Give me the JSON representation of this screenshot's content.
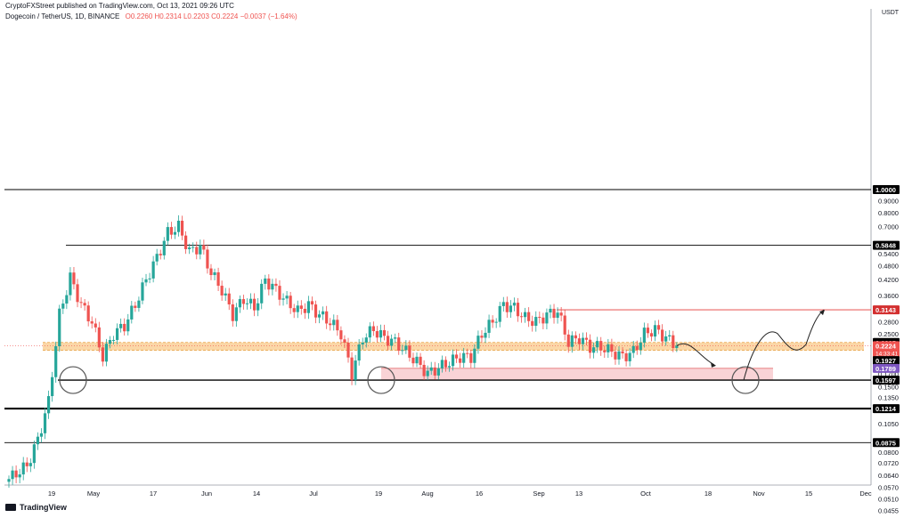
{
  "header": {
    "published": "CryptoFXStreet published on TradingView.com, Oct 13, 2021 09:26 UTC",
    "symbol": "Dogecoin / TetherUS, 1D, BINANCE",
    "ohlc": "O0.2260 H0.2314 L0.2203 C0.2224 −0.0037 (−1.64%)"
  },
  "currency_label": "USDT",
  "footer": {
    "brand": "TradingView"
  },
  "colors": {
    "up": "#26a69a",
    "down": "#ef5350",
    "demand_zone": "#f9c98a",
    "support_zone": "#f8c8cc",
    "level_line": "#000000",
    "resistance_line": "#e53935",
    "price_badge": "#ef5350",
    "level_badge": "#000000",
    "purple_badge": "#7e57c2",
    "red_badge": "#d32f2f"
  },
  "chart_data": {
    "type": "candlestick",
    "symbol": "Dogecoin / TetherUS",
    "interval": "1D",
    "exchange": "BINANCE",
    "y_scale": "log",
    "y_ticks": [
      0.9,
      0.8,
      0.7,
      0.54,
      0.48,
      0.42,
      0.36,
      0.28,
      0.25,
      0.19,
      0.17,
      0.15,
      0.135,
      0.105,
      0.08,
      0.072,
      0.064,
      0.057,
      0.051,
      0.0455
    ],
    "x_ticks": [
      "19",
      "May",
      "17",
      "Jun",
      "14",
      "Jul",
      "19",
      "Aug",
      "16",
      "Sep",
      "13",
      "Oct",
      "18",
      "Nov",
      "15",
      "Dec"
    ],
    "price_labels": [
      {
        "value": "1.0000",
        "style": "level"
      },
      {
        "value": "0.5848",
        "style": "level"
      },
      {
        "value": "0.3143",
        "style": "red"
      },
      {
        "value": "0.2295",
        "style": "level"
      },
      {
        "value": "0.2224",
        "style": "price",
        "countdown": "14:33:41"
      },
      {
        "value": "0.1927",
        "style": "level"
      },
      {
        "value": "0.1789",
        "style": "purple"
      },
      {
        "value": "0.1597",
        "style": "level"
      },
      {
        "value": "0.1214",
        "style": "level"
      },
      {
        "value": "0.0875",
        "style": "level"
      }
    ],
    "horizontal_levels": [
      1.0,
      0.5848,
      0.3143,
      0.1597,
      0.1214,
      0.0875
    ],
    "zones": [
      {
        "type": "demand",
        "from": 0.2127,
        "to": 0.2295
      },
      {
        "type": "support",
        "from": 0.1597,
        "to": 0.1789
      }
    ],
    "approx_path": [
      0.06,
      0.065,
      0.07,
      0.09,
      0.13,
      0.3,
      0.43,
      0.33,
      0.28,
      0.2,
      0.25,
      0.27,
      0.33,
      0.42,
      0.52,
      0.66,
      0.7,
      0.55,
      0.58,
      0.45,
      0.38,
      0.3,
      0.35,
      0.32,
      0.42,
      0.38,
      0.34,
      0.31,
      0.33,
      0.3,
      0.28,
      0.25,
      0.17,
      0.24,
      0.26,
      0.24,
      0.23,
      0.21,
      0.19,
      0.17,
      0.18,
      0.19,
      0.2,
      0.2,
      0.25,
      0.28,
      0.33,
      0.32,
      0.29,
      0.28,
      0.3,
      0.31,
      0.23,
      0.24,
      0.22,
      0.22,
      0.21,
      0.2,
      0.21,
      0.25,
      0.26,
      0.24,
      0.2224
    ],
    "projection": [
      0.2224,
      0.2,
      0.1789,
      0.1597,
      0.21,
      0.24,
      0.21,
      0.24,
      0.3143
    ]
  }
}
